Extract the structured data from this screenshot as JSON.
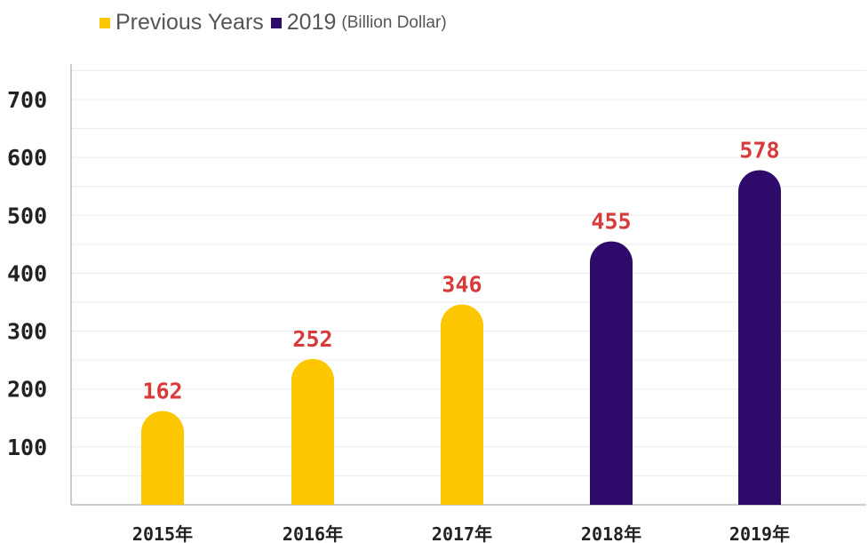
{
  "legend": {
    "series_a": "Previous Years",
    "series_b": "2019",
    "series_b_note": "(Billion Dollar)"
  },
  "colors": {
    "previous": "#fcc600",
    "current": "#2e0a6b",
    "value_label": "#d73a3a",
    "grid": "#ececec",
    "axis": "#bdbdbd"
  },
  "chart_data": {
    "type": "bar",
    "categories": [
      "2015年",
      "2016年",
      "2017年",
      "2018年",
      "2019年"
    ],
    "values": [
      162,
      252,
      346,
      455,
      578
    ],
    "bar_colors": [
      "#fcc600",
      "#fcc600",
      "#fcc600",
      "#2e0a6b",
      "#2e0a6b"
    ],
    "data_labels": [
      "162",
      "252",
      "346",
      "455",
      "578"
    ],
    "series": [
      {
        "name": "Previous Years",
        "color": "#fcc600"
      },
      {
        "name": "2019",
        "color": "#2e0a6b"
      }
    ],
    "yticks": [
      100,
      200,
      300,
      400,
      500,
      600,
      700
    ],
    "ylim": [
      0,
      700
    ],
    "title": "",
    "xlabel": "",
    "ylabel": "",
    "grid": true,
    "legend_position": "top-left"
  }
}
